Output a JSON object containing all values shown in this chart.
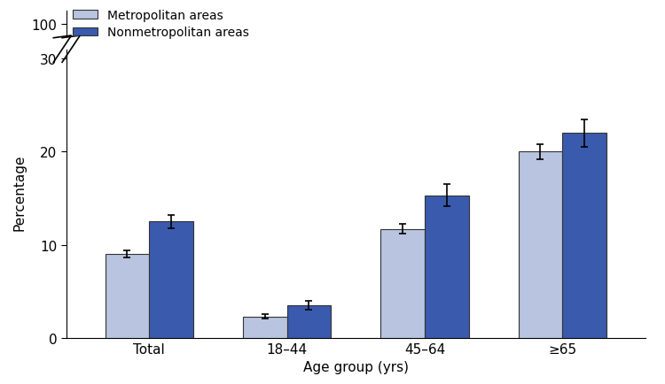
{
  "categories": [
    "Total",
    "18–44",
    "45–64",
    "≥65"
  ],
  "metro_values": [
    9.0,
    2.3,
    11.7,
    20.0
  ],
  "nonmetro_values": [
    12.5,
    3.5,
    15.3,
    22.0
  ],
  "metro_errors": [
    0.4,
    0.2,
    0.5,
    0.8
  ],
  "nonmetro_errors": [
    0.7,
    0.5,
    1.2,
    1.5
  ],
  "metro_color": "#b8c4e0",
  "nonmetro_color": "#3a5aad",
  "metro_edge_color": "#333333",
  "nonmetro_edge_color": "#333333",
  "error_color": "black",
  "bar_width": 0.32,
  "xlabel": "Age group (yrs)",
  "ylabel": "Percentage",
  "legend_metro": "Metropolitan areas",
  "legend_nonmetro": "Nonmetropolitan areas",
  "background_color": "#ffffff",
  "capsize": 3,
  "elinewidth": 1.2,
  "capthick": 1.2
}
